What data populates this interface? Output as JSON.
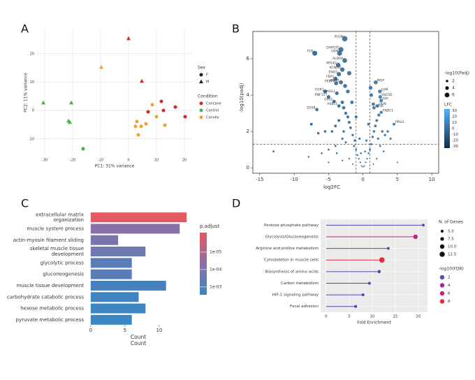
{
  "chart_data": [
    {
      "panel_label": "A",
      "type": "scatter",
      "xlabel": "PC1: 31% variance",
      "ylabel": "PC2: 11% variance",
      "xlim": [
        -33,
        23
      ],
      "ylim": [
        -15.7,
        28.3
      ],
      "xticks": [
        -30,
        -20,
        -10,
        0,
        10,
        20
      ],
      "yticks": [
        -10,
        0,
        10,
        20
      ],
      "grid": true,
      "shape_legend": {
        "title": "Sex",
        "items": [
          "F",
          "M"
        ]
      },
      "legend_title": "Condition",
      "series": [
        {
          "name": "Concave",
          "color": "#d7262b",
          "x": [
            0,
            4.75,
            11.75,
            7,
            12.5,
            16.75,
            20.25
          ],
          "y": [
            25.3,
            10.3,
            3.2,
            -0.5,
            0,
            1.2,
            -2.2
          ],
          "sex": [
            "M",
            "M",
            "F",
            "F",
            "F",
            "F",
            "F"
          ]
        },
        {
          "name": "Control",
          "color": "#4daf4a",
          "x": [
            -30.5,
            -20.5,
            -21.5,
            -21,
            -16.25
          ],
          "y": [
            2.7,
            2.7,
            -3.7,
            -4.2,
            -13.5
          ],
          "sex": [
            "M",
            "M",
            "M",
            "M",
            "F"
          ]
        },
        {
          "name": "Convex",
          "color": "#f0a030",
          "x": [
            -9.75,
            8.5,
            3,
            2.5,
            4.5,
            6.25,
            10,
            13,
            3.5
          ],
          "y": [
            15.2,
            2,
            -3.9,
            -5.6,
            -5.6,
            -4.7,
            -2.2,
            -5.2,
            -8.6
          ],
          "sex": [
            "M",
            "F",
            "F",
            "F",
            "F",
            "F",
            "F",
            "F",
            "F"
          ]
        }
      ]
    },
    {
      "panel_label": "B",
      "type": "volcano",
      "xlabel": "log2FC",
      "ylabel": "-log10(padj)",
      "xlim": [
        -16,
        11
      ],
      "ylim": [
        -0.3,
        7.5
      ],
      "xticks": [
        -15,
        -10,
        -5,
        0,
        5,
        10
      ],
      "yticks": [
        0,
        2,
        4,
        6
      ],
      "thresholds": {
        "x": [
          -1,
          1
        ],
        "y": [
          1.3
        ]
      },
      "x": [
        -2.65,
        -3.2,
        -3.4,
        -7,
        -2.65,
        -3.6,
        -3,
        -3.5,
        -4,
        -3.2,
        -3.9,
        -5.5,
        -3.8,
        -5,
        -4.2,
        -3.5,
        -6.7,
        1.85,
        2.45,
        2.5,
        2.65,
        2.1,
        1.6,
        2.65,
        4.5,
        -1.2,
        -1.5,
        -1.8,
        -2,
        -2.2,
        -2.5,
        -2.8,
        -3,
        -1.3,
        -1,
        -0.8,
        -0.6,
        -0.4,
        -0.2,
        0,
        0.2,
        0.4,
        0.6,
        0.8,
        1,
        1.2,
        1.4,
        1.6,
        1.8,
        2,
        2.3,
        1.5,
        1.2,
        1.1,
        -1.6,
        -2.2,
        -2.6,
        -2,
        -3.5,
        -4,
        -4.5,
        -5.5,
        -6.5,
        -7.5,
        -3,
        -2.5,
        -4,
        -5,
        -6,
        -13,
        -7.9,
        2.8,
        3.2,
        3.6,
        4,
        2.5,
        3,
        2,
        -2,
        -3,
        -1.5,
        1.5,
        0.5,
        -0.5,
        -1,
        0.8,
        -3.8,
        5,
        -5,
        -0.3,
        0.3,
        -2.8,
        2.2
      ],
      "y": [
        7.1,
        6.5,
        6.3,
        6.3,
        5.9,
        5.65,
        5.4,
        5.15,
        4.9,
        4.7,
        4.65,
        4.2,
        4.1,
        3.9,
        3.65,
        3.4,
        3.2,
        4.7,
        4.2,
        3.9,
        3.7,
        3.4,
        3.3,
        3.05,
        2.4,
        1.5,
        1.8,
        2.2,
        2.5,
        2.8,
        3,
        3.3,
        3.6,
        1.2,
        1,
        0.7,
        0.5,
        0.3,
        0.1,
        0.05,
        0.1,
        0.3,
        0.5,
        0.8,
        1,
        1.3,
        1.7,
        2,
        2.3,
        2.6,
        2.9,
        3.5,
        4,
        4.4,
        3.6,
        4.2,
        4.5,
        5.2,
        2.6,
        2.3,
        2,
        2,
        1.9,
        2.4,
        1.6,
        1.4,
        1.2,
        1,
        0.8,
        0.9,
        0.6,
        2,
        1.8,
        2,
        1.6,
        1.2,
        0.9,
        0.5,
        0.5,
        0.4,
        0.2,
        0.2,
        1.5,
        1.6,
        2.8,
        2.4,
        0.8,
        0.3,
        0.3,
        0.8,
        0.9,
        2,
        1.6
      ],
      "labels": [
        "PYGM",
        "DHRS7C",
        "CKM",
        "FOS",
        "ALDOA",
        "MYLK2",
        "KCNJ12",
        "ENO3",
        "FBP2",
        "PGM1",
        "PEBP4",
        "EGR1",
        "ADSSL1",
        "RNF157",
        "G0S2",
        "ASB11",
        "EDSB",
        "MGP",
        "LUM",
        "SSC5D",
        "FAP",
        "OGN",
        "CTSK",
        "FNDC1",
        "PRG4",
        null,
        null,
        null,
        null,
        null,
        null,
        null,
        null,
        null,
        null,
        null,
        null,
        null,
        null,
        null,
        null,
        null,
        null,
        null,
        null,
        null,
        null,
        null,
        null,
        null,
        null,
        null,
        null,
        null,
        null,
        null,
        null,
        null,
        null,
        null,
        null,
        null,
        null,
        null,
        null,
        null,
        null,
        null,
        null,
        null,
        null,
        null,
        null,
        null,
        null,
        null,
        null,
        null,
        null,
        null,
        null,
        null,
        null,
        null,
        null,
        null,
        null,
        null,
        null,
        null,
        null,
        null
      ],
      "size_legend": {
        "title": "-log10(Padj)",
        "values": [
          2,
          4,
          6
        ]
      },
      "color_legend": {
        "title": "LFC",
        "lim": [
          -33,
          33
        ],
        "ticks": [
          30,
          20,
          10,
          0,
          -10,
          -20,
          -30
        ],
        "colors": [
          "#132b43",
          "#56b1f7"
        ]
      }
    },
    {
      "panel_label": "C",
      "type": "barh",
      "categories": [
        "extracellular matrix\norganization",
        "muscle system process",
        "actin-myosin filament sliding",
        "skeletal muscle tissue\ndevelopment",
        "glycolytic process",
        "gluconeogenesis",
        "muscle tissue development",
        "carbohydrate catabolic process",
        "hexose metabolic process",
        "pyruvate metabolic process"
      ],
      "values": [
        14,
        13,
        4,
        8,
        6,
        6,
        11,
        7,
        8,
        6
      ],
      "colors": [
        "#e35a60",
        "#8a70a8",
        "#7a74ac",
        "#6e78b1",
        "#5a7db8",
        "#5a7db8",
        "#4581bd",
        "#3f84c0",
        "#3b86c2",
        "#3a87c4"
      ],
      "xlim": [
        -0.7,
        14.6
      ],
      "xticks": [
        0,
        5,
        10
      ],
      "xlabel": "Count",
      "xlabel_repeat": "Count",
      "color_legend": {
        "title": "p.adjust",
        "log": true,
        "lim": [
          7.6e-07,
          0.0028
        ],
        "ticks": [
          {
            "value": 1e-05,
            "label": "1e-05"
          },
          {
            "value": 0.0001,
            "label": "1e-04"
          },
          {
            "value": 0.001,
            "label": "1e-03"
          }
        ],
        "colors": [
          "#e8585f",
          "#8b6fa8",
          "#3b86c5"
        ]
      }
    },
    {
      "panel_label": "D",
      "type": "lollipop",
      "categories": [
        "Pentose phosphate pathway",
        "Glycolysis/Gluconeogenesis",
        "Arginine and proline metabolism",
        "Cytoskeleton in muscle cells",
        "Biosynthesis of amino acids",
        "Carbon metabolism",
        "HIF-1 signaling pathway",
        "Focal adhesion"
      ],
      "values": [
        21.1,
        19.4,
        13.5,
        12.1,
        11.5,
        9.4,
        8,
        6.4
      ],
      "sizes": [
        4,
        10,
        4,
        13,
        6,
        5,
        5,
        5
      ],
      "colors": [
        "#4b4bb0",
        "#c2237e",
        "#4b4bb0",
        "#e8283c",
        "#4b4bb0",
        "#4b4bb0",
        "#4b4bb0",
        "#4b4bb0"
      ],
      "xlim": [
        -1.2,
        22
      ],
      "xticks": [
        0,
        5,
        10,
        15,
        20
      ],
      "xlabel": "Fold Enrichment",
      "panel_color": "#ebebeb",
      "size_legend": {
        "title": "N. of Genes",
        "values": [
          {
            "value": 5,
            "label": "5.0"
          },
          {
            "value": 7.5,
            "label": "7.5"
          },
          {
            "value": 10,
            "label": "10.0"
          },
          {
            "value": 12.5,
            "label": "12.5"
          }
        ]
      },
      "color_legend": {
        "title": "-log10(FDR)",
        "values": [
          2,
          4,
          6,
          8
        ],
        "colors": [
          "#5a4fa8",
          "#9b2e9c",
          "#d21f6e",
          "#e8283c"
        ]
      }
    }
  ]
}
